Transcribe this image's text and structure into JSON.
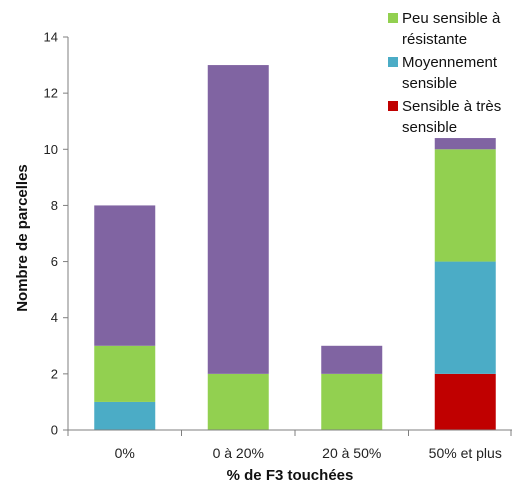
{
  "chart_data": {
    "type": "bar",
    "stacked": true,
    "categories": [
      "0%",
      "0 à 20%",
      "20 à 50%",
      "50% et plus"
    ],
    "series": [
      {
        "name": "Sensible à très sensible",
        "color": "#c00000",
        "values": [
          0,
          0,
          0,
          2
        ]
      },
      {
        "name": "Moyennement sensible",
        "color": "#4bacc6",
        "values": [
          1,
          0,
          0,
          4
        ]
      },
      {
        "name": "Peu sensible à résistante",
        "color": "#92d050",
        "values": [
          2,
          2,
          2,
          4
        ]
      },
      {
        "name": "",
        "color": "#8064a2",
        "values": [
          5,
          11,
          1,
          0.4
        ]
      }
    ],
    "xlabel": "% de F3 touchées",
    "ylabel": "Nombre de parcelles",
    "ylim": [
      0,
      14
    ],
    "yticks": [
      0,
      2,
      4,
      6,
      8,
      10,
      12,
      14
    ],
    "grid": false,
    "legend": {
      "position": "top-right",
      "entries": [
        {
          "lines": [
            "Peu sensible à",
            "résistante"
          ],
          "color": "#92d050"
        },
        {
          "lines": [
            "Moyennement",
            "sensible"
          ],
          "color": "#4bacc6"
        },
        {
          "lines": [
            "Sensible à très",
            "sensible"
          ],
          "color": "#c00000"
        }
      ]
    }
  }
}
